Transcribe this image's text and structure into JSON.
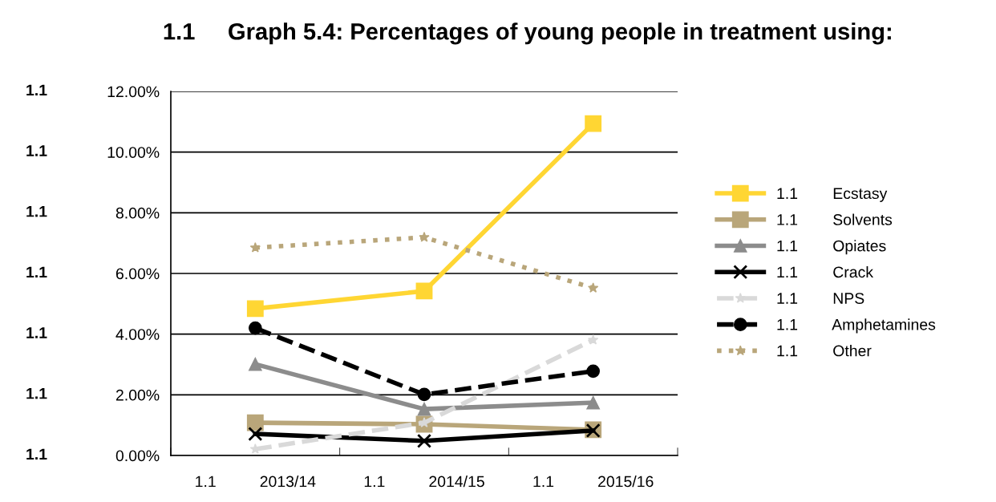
{
  "chart_data": {
    "type": "line",
    "title": "1.1     Graph 5.4: Percentages of young people in treatment using:",
    "categories": [
      "1.1          2013/14",
      "1.1          2014/15",
      "1.1          2015/16"
    ],
    "series": [
      {
        "name": "1.1        Ecstasy",
        "color": "#ffd633",
        "marker": "square",
        "line_style": "solid",
        "values": [
          4.84,
          5.42,
          10.94
        ]
      },
      {
        "name": "1.1        Solvents",
        "color": "#b9a67a",
        "marker": "square",
        "line_style": "solid",
        "values": [
          1.08,
          1.03,
          0.85
        ]
      },
      {
        "name": "1.1        Opiates",
        "color": "#8c8c8c",
        "marker": "triangle",
        "line_style": "solid",
        "values": [
          3.01,
          1.53,
          1.74
        ]
      },
      {
        "name": "1.1        Crack",
        "color": "#000000",
        "marker": "cross",
        "line_style": "solid",
        "values": [
          0.71,
          0.48,
          0.82
        ]
      },
      {
        "name": "1.1        NPS",
        "color": "#d9d9d9",
        "marker": "star",
        "line_style": "dashed",
        "values": [
          0.21,
          1.08,
          3.81
        ]
      },
      {
        "name": "1.1        Amphetamines",
        "color": "#000000",
        "marker": "circle",
        "line_style": "dashed",
        "values": [
          4.2,
          2.01,
          2.78
        ]
      },
      {
        "name": "1.1        Other",
        "color": "#b9a67a",
        "marker": "star",
        "line_style": "dotted",
        "values": [
          6.85,
          7.19,
          5.52
        ]
      }
    ],
    "ylim": [
      0,
      12
    ],
    "yticks": [
      {
        "value": 0,
        "label": "0.00%"
      },
      {
        "value": 2,
        "label": "2.00%"
      },
      {
        "value": 4,
        "label": "4.00%"
      },
      {
        "value": 6,
        "label": "6.00%"
      },
      {
        "value": 8,
        "label": "8.00%"
      },
      {
        "value": 10,
        "label": "10.00%"
      },
      {
        "value": 12,
        "label": "12.00%"
      }
    ],
    "annotations": [
      "1.1",
      "1.1",
      "1.1",
      "1.1",
      "1.1",
      "1.1",
      "1.1"
    ],
    "grid": "y",
    "legend": "right"
  }
}
